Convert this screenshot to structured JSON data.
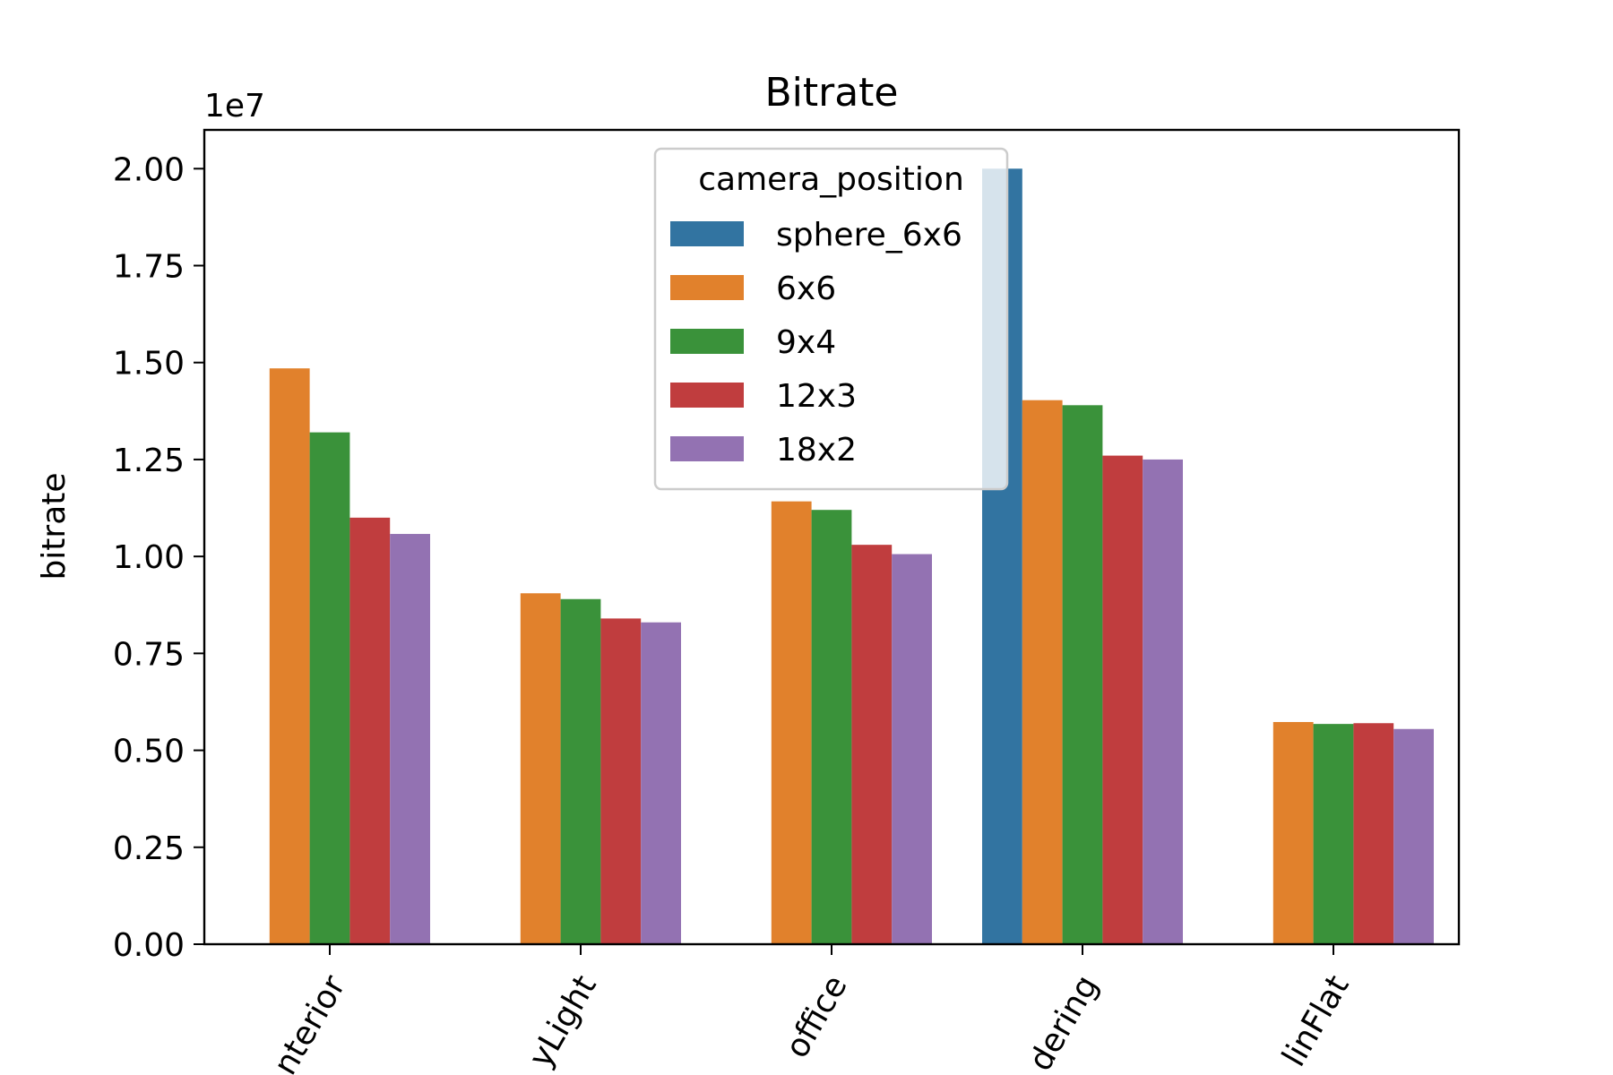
{
  "chart_data": {
    "type": "bar",
    "title": "Bitrate",
    "xlabel": "",
    "ylabel": "bitrate",
    "offset_text": "1e7",
    "ylim": [
      0,
      2.1
    ],
    "yticks": [
      "0.00",
      "0.25",
      "0.50",
      "0.75",
      "1.00",
      "1.25",
      "1.50",
      "1.75",
      "2.00"
    ],
    "categories": [
      "nterior",
      "yLight",
      "office",
      "dering",
      "linFlat"
    ],
    "series": [
      {
        "name": "sphere_6x6",
        "color": "#3274a1",
        "values": [
          null,
          null,
          null,
          2.0,
          null
        ]
      },
      {
        "name": "6x6",
        "color": "#e1812c",
        "values": [
          1.485,
          0.905,
          1.142,
          1.403,
          0.573
        ]
      },
      {
        "name": "9x4",
        "color": "#3a923a",
        "values": [
          1.32,
          0.89,
          1.12,
          1.39,
          0.568
        ]
      },
      {
        "name": "12x3",
        "color": "#c03d3e",
        "values": [
          1.1,
          0.84,
          1.03,
          1.26,
          0.57
        ]
      },
      {
        "name": "18x2",
        "color": "#9372b2",
        "values": [
          1.058,
          0.83,
          1.006,
          1.25,
          0.555
        ]
      }
    ],
    "legend": {
      "title": "camera_position",
      "placement": "upper-center"
    },
    "grid": false
  }
}
